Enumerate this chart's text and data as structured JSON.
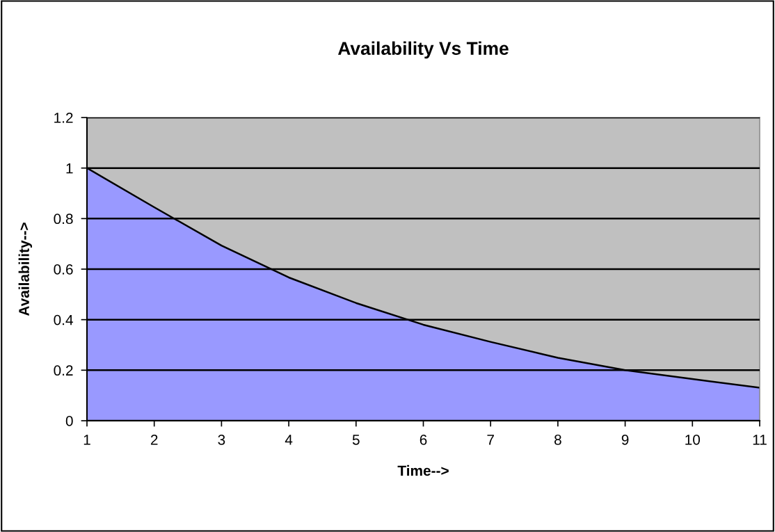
{
  "chart_data": {
    "type": "area",
    "title": "Availability Vs Time",
    "xlabel": "Time-->",
    "ylabel": "Availability-->",
    "x": [
      1,
      2,
      3,
      4,
      5,
      6,
      7,
      8,
      9,
      10,
      11
    ],
    "series": [
      {
        "color": "#9999ff",
        "values": [
          1.0,
          0.845,
          0.693,
          0.567,
          0.466,
          0.38,
          0.312,
          0.249,
          0.2,
          0.165,
          0.131
        ]
      }
    ],
    "xlim": [
      1,
      11
    ],
    "xticks": [
      1,
      2,
      3,
      4,
      5,
      6,
      7,
      8,
      9,
      10,
      11
    ],
    "ylim": [
      0,
      1.2
    ],
    "yticks": [
      0,
      0.2,
      0.4,
      0.6,
      0.8,
      1,
      1.2
    ],
    "grid": "y"
  }
}
